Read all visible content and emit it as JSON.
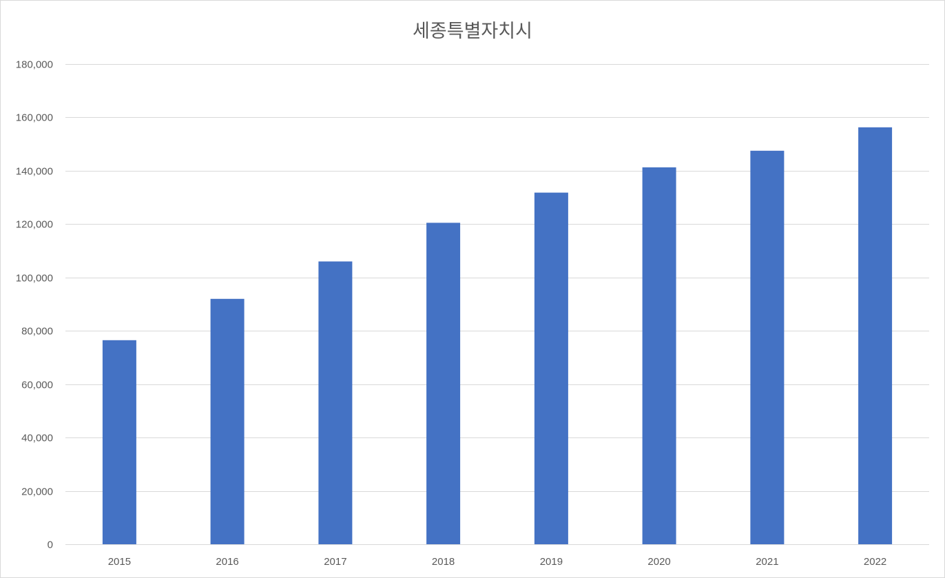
{
  "chart_data": {
    "type": "bar",
    "title": "세종특별자치시",
    "xlabel": "",
    "ylabel": "",
    "categories": [
      "2015",
      "2016",
      "2017",
      "2018",
      "2019",
      "2020",
      "2021",
      "2022"
    ],
    "series": [
      {
        "values": [
          76500,
          92000,
          106000,
          120500,
          131800,
          141300,
          147500,
          156300
        ]
      }
    ],
    "ylim": [
      0,
      180000
    ],
    "y_ticks": [
      "0",
      "20,000",
      "40,000",
      "60,000",
      "80,000",
      "100,000",
      "120,000",
      "140,000",
      "160,000",
      "180,000"
    ],
    "grid": true,
    "legend": "none",
    "bar_color": "#4472c4",
    "grid_color": "#d9d9d9"
  }
}
